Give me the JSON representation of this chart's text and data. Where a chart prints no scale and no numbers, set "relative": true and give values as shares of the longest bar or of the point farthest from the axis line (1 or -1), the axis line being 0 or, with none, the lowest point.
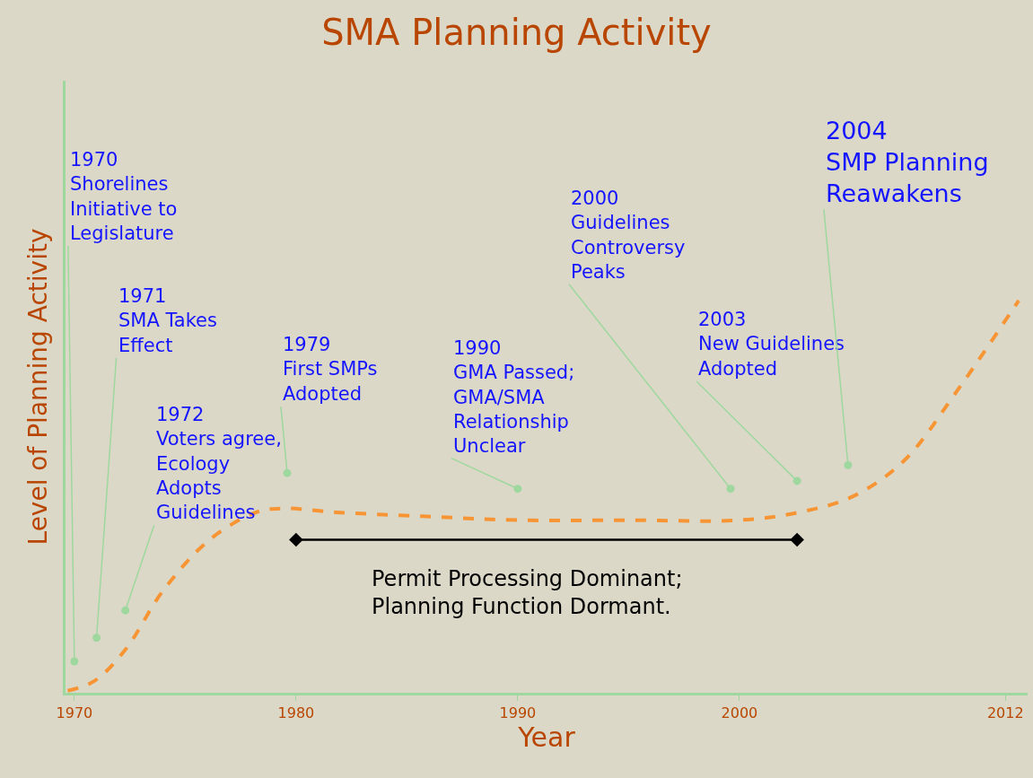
{
  "chart_data": {
    "type": "line",
    "title": "SMA Planning Activity",
    "xlabel": "Year",
    "ylabel": "Level of Planning Activity",
    "relative": true,
    "xlim": [
      1969.6,
      2013
    ],
    "xticks": [
      1970,
      1980,
      1990,
      2000,
      2012
    ],
    "grid": false,
    "series": [
      {
        "color": "#f79433",
        "line_style": "dashed",
        "marker": "none",
        "x": [
          1969.7,
          1970.9,
          1972.3,
          1974.0,
          1976.1,
          1978.2,
          1979.4,
          1981.8,
          1985.7,
          1990.0,
          1995.0,
          2000.0,
          2002.7,
          2005.1,
          2007.4,
          2009.7,
          2012.6
        ],
        "values": [
          0.005,
          0.03,
          0.11,
          0.26,
          0.39,
          0.46,
          0.47,
          0.46,
          0.45,
          0.44,
          0.44,
          0.44,
          0.46,
          0.5,
          0.59,
          0.76,
          1.0
        ]
      },
      {
        "color": "#000000",
        "line_style": "solid",
        "marker": "diamond",
        "x": [
          1980,
          2002.6
        ],
        "values": [
          0.39,
          0.39
        ]
      }
    ],
    "annotations": [
      {
        "text": "1970\nShorelines\nInitiative to\nLegislature",
        "x": 1970,
        "y": 0.08
      },
      {
        "text": "1971\nSMA Takes\nEffect",
        "x": 1971,
        "y": 0.14
      },
      {
        "text": "1972\nVoters agree,\nEcology\nAdopts\nGuidelines",
        "x": 1972.3,
        "y": 0.21
      },
      {
        "text": "1979\nFirst SMPs\nAdopted",
        "x": 1979.6,
        "y": 0.56
      },
      {
        "text": "1990\nGMA Passed;\nGMA/SMA\nRelationship\nUnclear",
        "x": 1990,
        "y": 0.52
      },
      {
        "text": "2000\nGuidelines\nControversy\nPeaks",
        "x": 1999.6,
        "y": 0.52
      },
      {
        "text": "2003\nNew Guidelines\nAdopted",
        "x": 2002.6,
        "y": 0.54
      },
      {
        "text": "2004\nSMP Planning\nReawakens",
        "x": 2004.9,
        "y": 0.58
      },
      "Permit Processing Dominant;\nPlanning Function Dormant."
    ]
  }
}
